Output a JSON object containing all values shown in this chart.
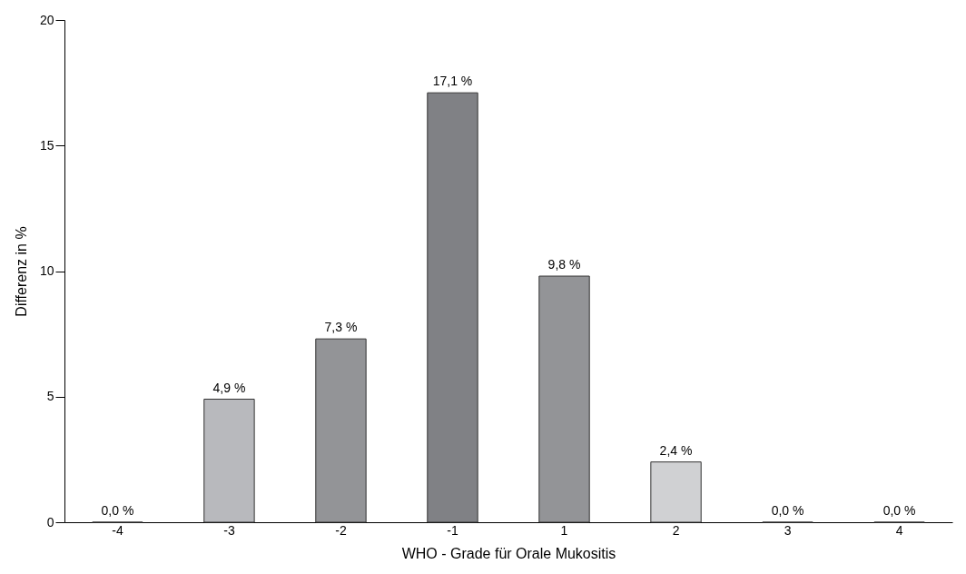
{
  "chart_data": {
    "type": "bar",
    "xlabel": "WHO - Grade für Orale Mukositis",
    "ylabel": "Differenz in %",
    "categories": [
      "-4",
      "-3",
      "-2",
      "-1",
      "1",
      "2",
      "3",
      "4"
    ],
    "values": [
      0.0,
      4.9,
      7.3,
      17.1,
      9.8,
      2.4,
      0.0,
      0.0
    ],
    "colors": [
      "#333333",
      "#b8b9bd",
      "#939497",
      "#808185",
      "#939497",
      "#d0d1d3",
      "#333333",
      "#333333"
    ],
    "value_labels": [
      "0,0 %",
      "4,9 %",
      "7,3 %",
      "17,1 %",
      "9,8 %",
      "2,4 %",
      "0,0 %",
      "0,0 %"
    ],
    "ylim": [
      0,
      20
    ],
    "yticks": [
      0,
      5,
      10,
      15,
      20
    ],
    "grid": false
  }
}
